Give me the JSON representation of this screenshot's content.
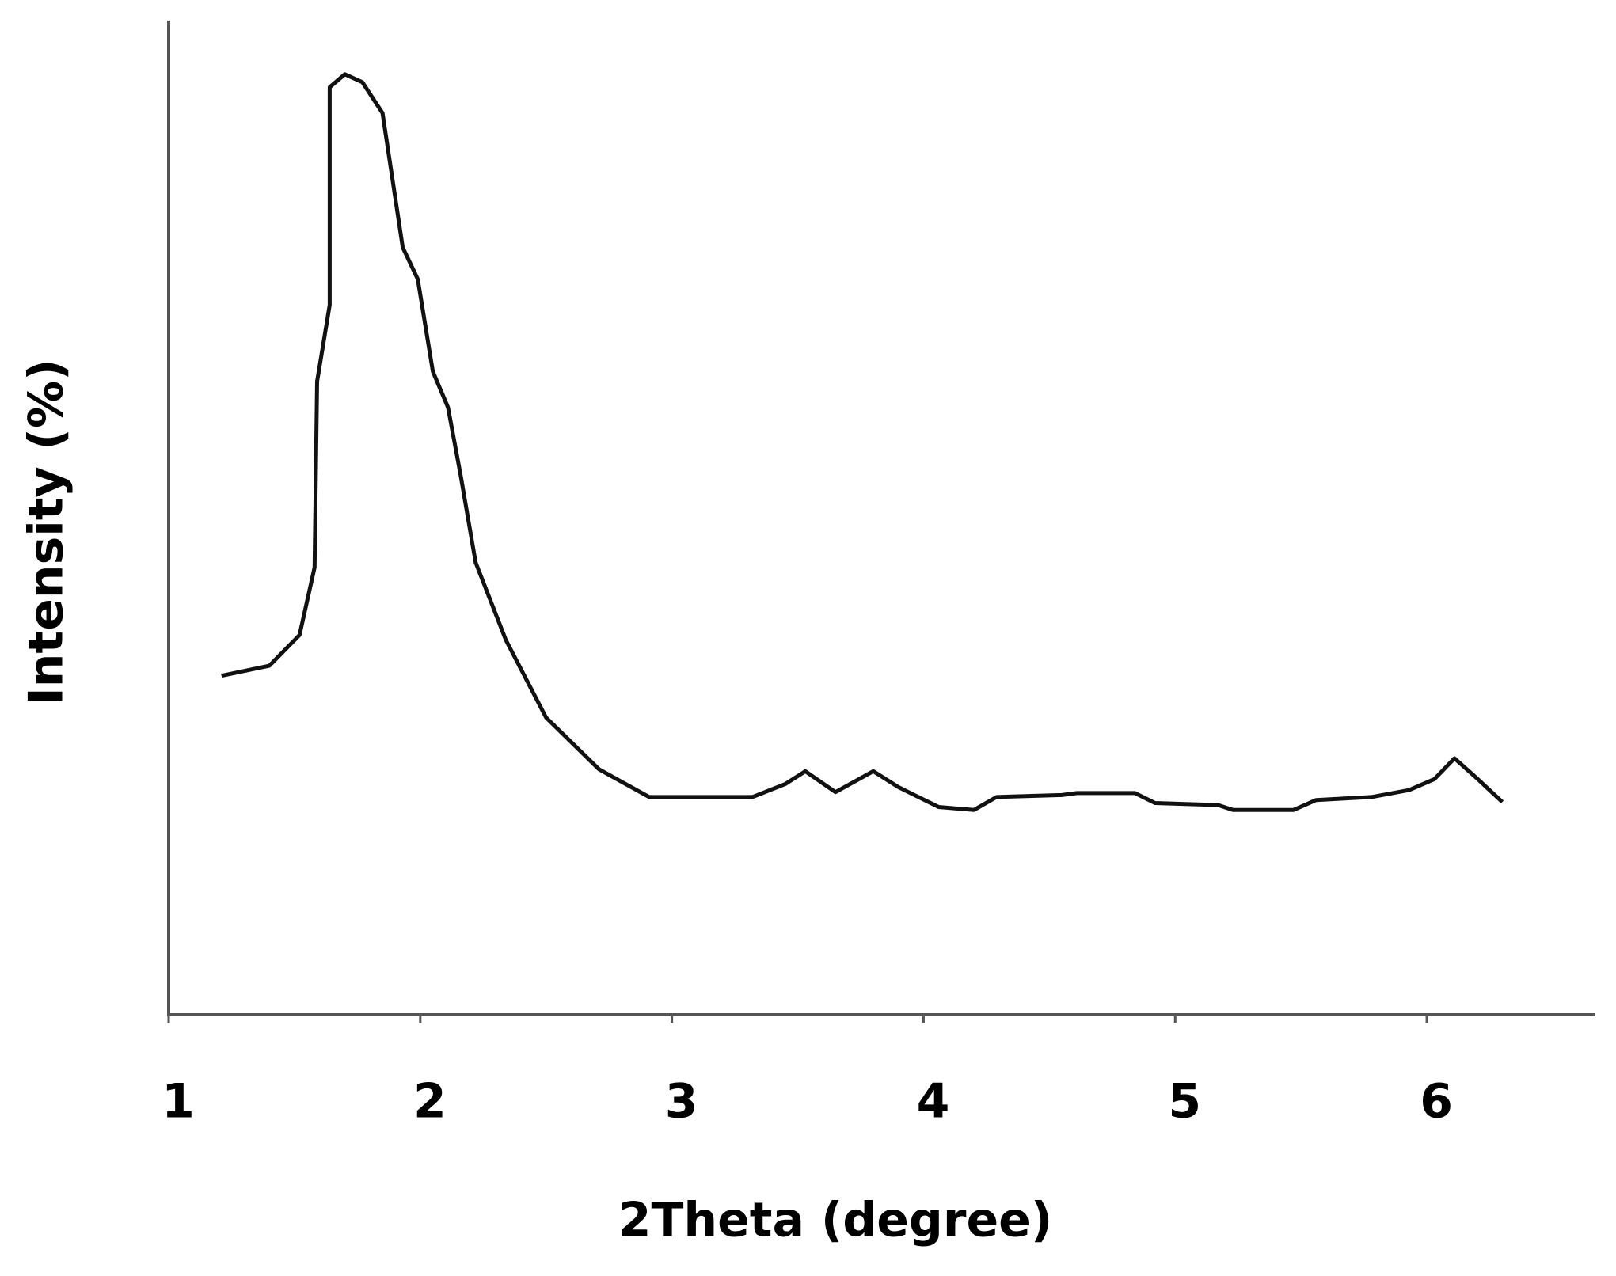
{
  "chart_data": {
    "type": "line",
    "x_label": "2Theta (degree)",
    "y_label": "Intensity (%)",
    "x": [
      1.21,
      1.4,
      1.52,
      1.58,
      1.59,
      1.64,
      1.64,
      1.7,
      1.77,
      1.85,
      1.93,
      1.99,
      2.05,
      2.11,
      2.16,
      2.22,
      2.34,
      2.5,
      2.71,
      2.91,
      3.32,
      3.45,
      3.53,
      3.65,
      3.8,
      3.9,
      4.06,
      4.2,
      4.29,
      4.55,
      4.61,
      4.84,
      4.92,
      5.17,
      5.23,
      5.47,
      5.56,
      5.78,
      5.93,
      6.03,
      6.11,
      6.19,
      6.3
    ],
    "values": [
      34.1,
      35.1,
      38.2,
      45.0,
      63.7,
      71.4,
      93.3,
      94.6,
      93.8,
      90.7,
      77.2,
      74.0,
      64.7,
      61.1,
      54.3,
      45.5,
      37.7,
      29.9,
      24.7,
      21.9,
      21.9,
      23.2,
      24.5,
      22.4,
      24.5,
      22.9,
      20.9,
      20.6,
      21.9,
      22.1,
      22.3,
      22.3,
      21.3,
      21.1,
      20.6,
      20.6,
      21.6,
      21.9,
      22.6,
      23.7,
      25.8,
      24.0,
      21.4
    ],
    "color": "#111111",
    "xlim": [
      1,
      6.67
    ],
    "xticks": [
      1,
      2,
      3,
      4,
      5,
      6
    ],
    "ylim": [
      0,
      100
    ],
    "grid": false
  }
}
